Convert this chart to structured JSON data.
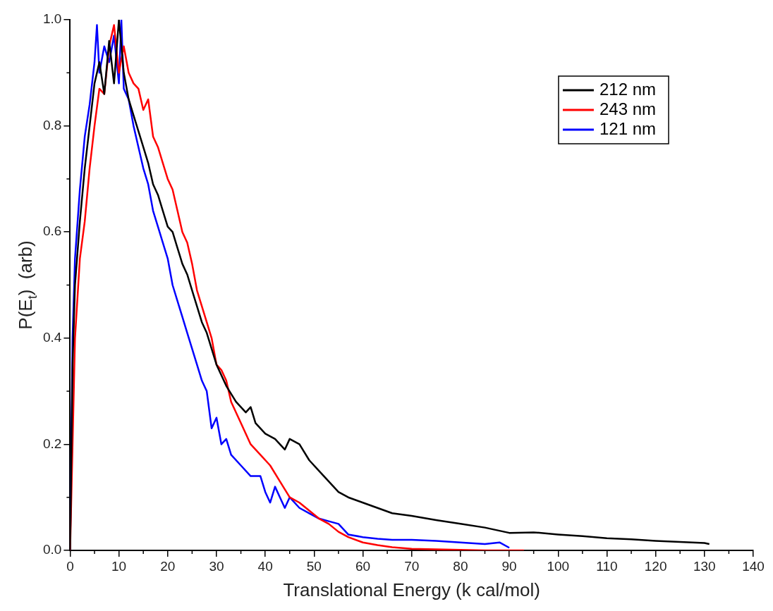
{
  "chart_data": {
    "type": "line",
    "xlabel": "Translational Energy (k cal/mol)",
    "ylabel": "P(E$_{t}$)  (arb)",
    "xlim": [
      0,
      140
    ],
    "ylim": [
      0,
      1.0
    ],
    "xticks": [
      0,
      10,
      20,
      30,
      40,
      50,
      60,
      70,
      80,
      90,
      100,
      110,
      120,
      130,
      140
    ],
    "yticks": [
      {
        "value": 0,
        "label": "0.0"
      },
      0.2,
      0.4,
      0.6,
      0.8,
      {
        "value": 1,
        "label": "1.0"
      }
    ],
    "grid": false,
    "legend": "top right",
    "marker": "none",
    "line_style": "solid",
    "series": [
      {
        "name": "212 nm",
        "color": "#000000",
        "x": [
          0,
          0.5,
          1,
          2,
          3,
          4,
          5,
          6,
          7,
          8,
          9,
          10,
          11,
          12,
          13,
          14,
          15,
          16,
          17,
          18,
          19,
          20,
          21,
          22,
          23,
          24,
          25,
          26,
          27,
          28,
          29,
          30,
          32,
          34,
          36,
          37,
          38,
          40,
          42,
          44,
          45,
          47,
          49,
          51,
          53,
          55,
          57,
          60,
          63,
          66,
          70,
          75,
          80,
          85,
          88,
          90,
          95,
          100,
          105,
          110,
          115,
          120,
          125,
          130,
          131
        ],
        "values": [
          0,
          0.35,
          0.5,
          0.62,
          0.72,
          0.8,
          0.88,
          0.92,
          0.86,
          0.96,
          0.88,
          1.0,
          0.9,
          0.85,
          0.82,
          0.79,
          0.76,
          0.73,
          0.69,
          0.67,
          0.64,
          0.61,
          0.6,
          0.57,
          0.54,
          0.52,
          0.49,
          0.46,
          0.43,
          0.41,
          0.38,
          0.35,
          0.31,
          0.28,
          0.26,
          0.27,
          0.24,
          0.22,
          0.21,
          0.19,
          0.21,
          0.2,
          0.17,
          0.15,
          0.13,
          0.11,
          0.1,
          0.09,
          0.08,
          0.07,
          0.065,
          0.057,
          0.05,
          0.043,
          0.037,
          0.033,
          0.034,
          0.03,
          0.027,
          0.023,
          0.021,
          0.018,
          0.016,
          0.014,
          0.012
        ]
      },
      {
        "name": "243 nm",
        "color": "#ff0000",
        "x": [
          0,
          0.5,
          1,
          2,
          3,
          4,
          5,
          6,
          7,
          8,
          9,
          10,
          11,
          12,
          13,
          14,
          15,
          16,
          17,
          18,
          19,
          20,
          21,
          22,
          23,
          24,
          25,
          26,
          27,
          28,
          29,
          30,
          31,
          32,
          33,
          35,
          37,
          39,
          41,
          43,
          45,
          47,
          49,
          51,
          53,
          55,
          57,
          60,
          63,
          66,
          70,
          75,
          80,
          85,
          90,
          93
        ],
        "values": [
          0,
          0.2,
          0.4,
          0.55,
          0.62,
          0.72,
          0.8,
          0.87,
          0.86,
          0.95,
          0.99,
          0.9,
          0.95,
          0.9,
          0.88,
          0.87,
          0.83,
          0.85,
          0.78,
          0.76,
          0.73,
          0.7,
          0.68,
          0.64,
          0.6,
          0.58,
          0.54,
          0.49,
          0.46,
          0.43,
          0.4,
          0.35,
          0.34,
          0.32,
          0.28,
          0.24,
          0.2,
          0.18,
          0.16,
          0.13,
          0.1,
          0.09,
          0.075,
          0.06,
          0.05,
          0.035,
          0.025,
          0.015,
          0.01,
          0.006,
          0.003,
          0.002,
          0.001,
          0,
          0,
          0
        ]
      },
      {
        "name": "121 nm",
        "color": "#0000ff",
        "x": [
          0,
          0.5,
          1,
          2,
          3,
          4,
          5,
          5.5,
          6,
          7,
          8,
          9,
          10,
          10.5,
          11,
          12,
          13,
          14,
          15,
          16,
          17,
          18,
          19,
          20,
          21,
          22,
          23,
          24,
          25,
          26,
          27,
          28,
          29,
          30,
          31,
          32,
          33,
          35,
          37,
          39,
          40,
          41,
          42,
          43,
          44,
          45,
          47,
          49,
          51,
          53,
          55,
          57,
          60,
          63,
          66,
          70,
          75,
          80,
          85,
          88,
          90
        ],
        "values": [
          0,
          0.4,
          0.55,
          0.68,
          0.78,
          0.84,
          0.92,
          0.99,
          0.9,
          0.95,
          0.92,
          0.97,
          0.88,
          1.0,
          0.87,
          0.85,
          0.8,
          0.76,
          0.72,
          0.69,
          0.64,
          0.61,
          0.58,
          0.55,
          0.5,
          0.47,
          0.44,
          0.41,
          0.38,
          0.35,
          0.32,
          0.3,
          0.23,
          0.25,
          0.2,
          0.21,
          0.18,
          0.16,
          0.14,
          0.14,
          0.11,
          0.09,
          0.12,
          0.1,
          0.08,
          0.1,
          0.08,
          0.07,
          0.06,
          0.055,
          0.05,
          0.03,
          0.025,
          0.022,
          0.02,
          0.02,
          0.018,
          0.015,
          0.012,
          0.015,
          0.005
        ]
      }
    ]
  }
}
